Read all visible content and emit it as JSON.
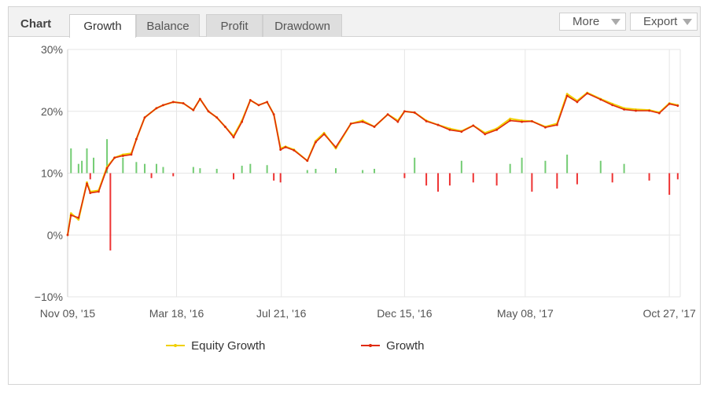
{
  "toolbar": {
    "title": "Chart",
    "tabs": [
      {
        "label": "Growth",
        "active": true
      },
      {
        "label": "Balance",
        "active": false
      },
      {
        "label": "Profit",
        "active": false
      },
      {
        "label": "Drawdown",
        "active": false
      }
    ],
    "more_label": "More",
    "export_label": "Export"
  },
  "colors": {
    "equity": "#f0d000",
    "growth": "#e02a0a",
    "bar_positive": "#74cc74",
    "bar_negative": "#ee3333",
    "grid": "#e6e6e6"
  },
  "chart_data": {
    "type": "line",
    "ylim": [
      -10,
      30
    ],
    "yticks": [
      "30%",
      "20%",
      "10%",
      "0%",
      "−10%"
    ],
    "xticks": [
      "Nov 09, '15",
      "Mar 18, '16",
      "Jul 21, '16",
      "Dec 15, '16",
      "May 08, '17",
      "Oct 27, '17"
    ],
    "grid": true,
    "legend_position": "bottom",
    "series": [
      {
        "name": "Equity Growth",
        "x": [
          "Nov 09, '15",
          "Nov 13, '15",
          "Nov 22, '15",
          "Dec 02, '15",
          "Dec 06, '15",
          "Dec 16, '15",
          "Dec 26, '15",
          "Jan 04, '16",
          "Jan 14, '16",
          "Jan 24, '16",
          "Jan 30, '16",
          "Feb 09, '16",
          "Feb 23, '16",
          "Mar 02, '16",
          "Mar 14, '16",
          "Mar 26, '16",
          "Apr 07, '16",
          "Apr 15, '16",
          "Apr 25, '16",
          "May 05, '16",
          "May 15, '16",
          "May 25, '16",
          "Jun 04, '16",
          "Jun 14, '16",
          "Jun 24, '16",
          "Jul 04, '16",
          "Jul 12, '16",
          "Jul 20, '16",
          "Jul 26, '16",
          "Aug 05, '16",
          "Aug 21, '16",
          "Aug 31, '16",
          "Sep 10, '16",
          "Sep 24, '16",
          "Oct 12, '16",
          "Oct 26, '16",
          "Nov 09, '16",
          "Nov 25, '16",
          "Dec 07, '16",
          "Dec 15, '16",
          "Dec 27, '16",
          "Jan 10, '17",
          "Jan 24, '17",
          "Feb 07, '17",
          "Feb 21, '17",
          "Mar 07, '17",
          "Mar 21, '17",
          "Apr 04, '17",
          "Apr 20, '17",
          "May 04, '17",
          "May 16, '17",
          "Jun 01, '17",
          "Jun 15, '17",
          "Jun 27, '17",
          "Jul 09, '17",
          "Jul 21, '17",
          "Aug 06, '17",
          "Aug 20, '17",
          "Sep 03, '17",
          "Sep 17, '17",
          "Oct 03, '17",
          "Oct 15, '17",
          "Oct 27, '17",
          "Nov 06, '17"
        ],
        "values": [
          0,
          3.5,
          2.5,
          8.5,
          7,
          7.2,
          11,
          12.5,
          13,
          13.2,
          15.5,
          19,
          20.5,
          21,
          21.5,
          21.3,
          20.2,
          22,
          20,
          19,
          17.5,
          16,
          18.5,
          21.8,
          21,
          21.5,
          19.5,
          14,
          14.3,
          13.8,
          12,
          15.2,
          16.5,
          14,
          18,
          18.5,
          17.5,
          19.5,
          18.5,
          20,
          19.8,
          18.5,
          17.8,
          17.2,
          16.8,
          17.7,
          16.5,
          17.2,
          18.8,
          18.5,
          18.4,
          17.5,
          18,
          22.8,
          21.7,
          23,
          22,
          21.2,
          20.5,
          20.3,
          20.2,
          19.8,
          21.3,
          21
        ]
      },
      {
        "name": "Growth",
        "x": [
          "Nov 09, '15",
          "Nov 13, '15",
          "Nov 22, '15",
          "Dec 02, '15",
          "Dec 06, '15",
          "Dec 16, '15",
          "Dec 26, '15",
          "Jan 04, '16",
          "Jan 14, '16",
          "Jan 24, '16",
          "Jan 30, '16",
          "Feb 09, '16",
          "Feb 23, '16",
          "Mar 02, '16",
          "Mar 14, '16",
          "Mar 26, '16",
          "Apr 07, '16",
          "Apr 15, '16",
          "Apr 25, '16",
          "May 05, '16",
          "May 15, '16",
          "May 25, '16",
          "Jun 04, '16",
          "Jun 14, '16",
          "Jun 24, '16",
          "Jul 04, '16",
          "Jul 12, '16",
          "Jul 20, '16",
          "Jul 26, '16",
          "Aug 05, '16",
          "Aug 21, '16",
          "Aug 31, '16",
          "Sep 10, '16",
          "Sep 24, '16",
          "Oct 12, '16",
          "Oct 26, '16",
          "Nov 09, '16",
          "Nov 25, '16",
          "Dec 07, '16",
          "Dec 15, '16",
          "Dec 27, '16",
          "Jan 10, '17",
          "Jan 24, '17",
          "Feb 07, '17",
          "Feb 21, '17",
          "Mar 07, '17",
          "Mar 21, '17",
          "Apr 04, '17",
          "Apr 20, '17",
          "May 04, '17",
          "May 16, '17",
          "Jun 01, '17",
          "Jun 15, '17",
          "Jun 27, '17",
          "Jul 09, '17",
          "Jul 21, '17",
          "Aug 06, '17",
          "Aug 20, '17",
          "Sep 03, '17",
          "Sep 17, '17",
          "Oct 03, '17",
          "Oct 15, '17",
          "Oct 27, '17",
          "Nov 06, '17"
        ],
        "values": [
          0,
          3.2,
          2.8,
          8.3,
          6.8,
          7,
          10.8,
          12.5,
          12.8,
          13,
          15.5,
          19,
          20.5,
          21,
          21.5,
          21.3,
          20.2,
          22,
          20,
          19,
          17.5,
          15.8,
          18.3,
          21.8,
          21,
          21.5,
          19.5,
          13.8,
          14.2,
          13.7,
          12,
          15,
          16.3,
          14.2,
          18,
          18.3,
          17.5,
          19.5,
          18.3,
          20,
          19.8,
          18.4,
          17.8,
          17,
          16.7,
          17.7,
          16.3,
          17,
          18.5,
          18.3,
          18.4,
          17.4,
          17.8,
          22.5,
          21.5,
          22.9,
          21.9,
          21,
          20.3,
          20.1,
          20.1,
          19.7,
          21.2,
          20.9
        ]
      }
    ],
    "bars": {
      "x": [
        "Nov 13, '15",
        "Nov 22, '15",
        "Nov 26, '15",
        "Dec 02, '15",
        "Dec 06, '15",
        "Dec 10, '15",
        "Dec 26, '15",
        "Dec 30, '15",
        "Jan 14, '16",
        "Jan 30, '16",
        "Feb 09, '16",
        "Feb 17, '16",
        "Feb 23, '16",
        "Mar 02, '16",
        "Mar 14, '16",
        "Apr 07, '16",
        "Apr 15, '16",
        "May 05, '16",
        "May 25, '16",
        "Jun 04, '16",
        "Jun 14, '16",
        "Jul 04, '16",
        "Jul 12, '16",
        "Jul 20, '16",
        "Aug 21, '16",
        "Aug 31, '16",
        "Sep 24, '16",
        "Oct 26, '16",
        "Nov 09, '16",
        "Dec 15, '16",
        "Dec 27, '16",
        "Jan 10, '17",
        "Jan 24, '17",
        "Feb 07, '17",
        "Feb 21, '17",
        "Mar 07, '17",
        "Apr 04, '17",
        "Apr 20, '17",
        "May 04, '17",
        "May 16, '17",
        "Jun 01, '17",
        "Jun 15, '17",
        "Jun 27, '17",
        "Jul 09, '17",
        "Aug 06, '17",
        "Aug 20, '17",
        "Sep 03, '17",
        "Oct 03, '17",
        "Oct 27, '17",
        "Nov 06, '17"
      ],
      "values": [
        4,
        1.5,
        2,
        4,
        -1,
        2.5,
        5.5,
        -12.5,
        2.5,
        1.8,
        1.5,
        -0.8,
        1.5,
        1,
        -0.5,
        1,
        0.8,
        0.7,
        -1,
        1.2,
        1.5,
        1.3,
        -1.2,
        -1.5,
        0.5,
        0.7,
        0.8,
        0.5,
        0.7,
        -0.8,
        2.5,
        -2,
        -3,
        -2,
        2,
        -1.5,
        -2,
        1.5,
        2.5,
        -3,
        2,
        -2.5,
        3,
        -1.8,
        2,
        -1.5,
        1.5,
        -1.2,
        -3.5,
        -1
      ]
    }
  }
}
